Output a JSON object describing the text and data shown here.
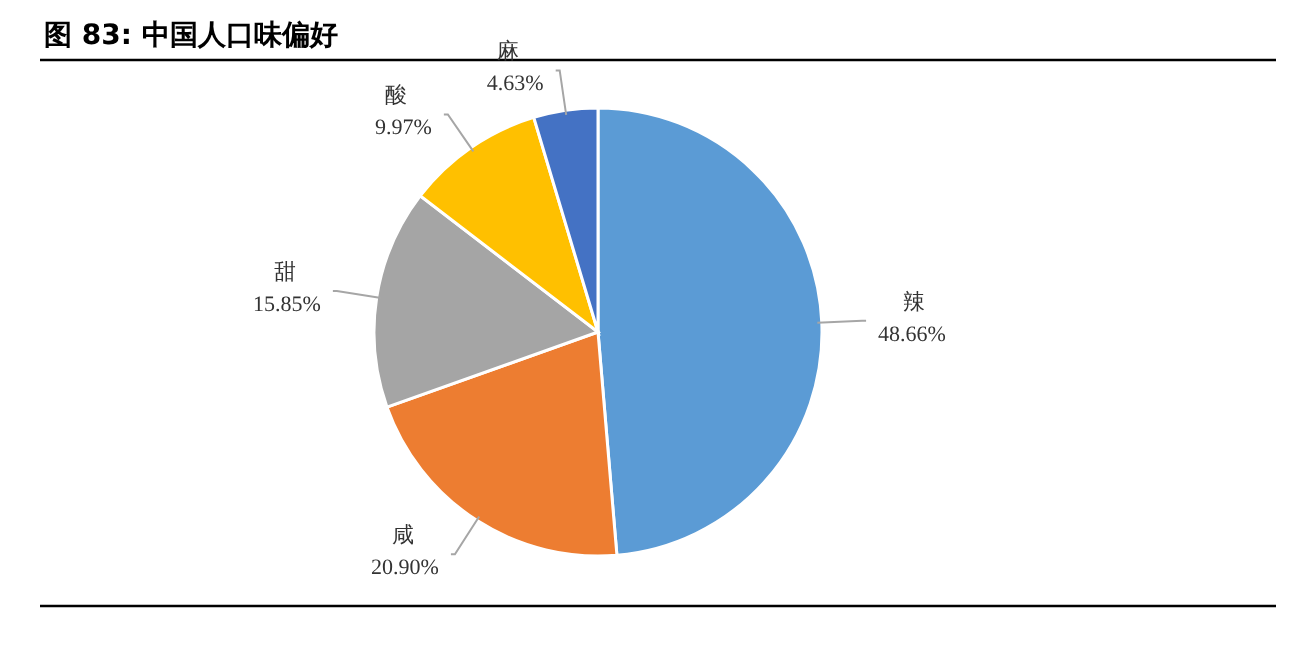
{
  "chart_data": {
    "type": "pie",
    "title": "图 83:  中国人口味偏好",
    "categories": [
      "辣",
      "咸",
      "甜",
      "酸",
      "麻"
    ],
    "values": [
      48.66,
      20.9,
      15.85,
      9.97,
      4.63
    ],
    "value_labels": [
      "48.66%",
      "20.90%",
      "15.85%",
      "9.97%",
      "4.63%"
    ],
    "colors": [
      "#5b9bd5",
      "#ed7d31",
      "#a5a5a5",
      "#ffc000",
      "#4472c4"
    ]
  }
}
